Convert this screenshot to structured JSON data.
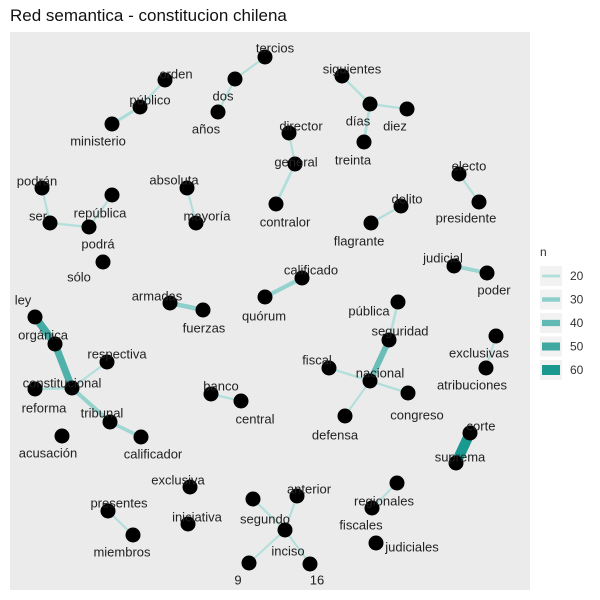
{
  "chart_data": {
    "type": "network",
    "title": "Red semantica - constitucion chilena",
    "legend": {
      "title": "n",
      "placement": "right",
      "values": [
        20,
        30,
        40,
        50,
        60
      ],
      "range": [
        15,
        65
      ],
      "colors": [
        "#b2dfdb",
        "#8ecfcb",
        "#62b8b3",
        "#3ea8a1",
        "#1a9991"
      ]
    },
    "nodes": [
      {
        "id": "tercios",
        "label": "tercios"
      },
      {
        "id": "dos",
        "label": "dos"
      },
      {
        "id": "anos",
        "label": "años"
      },
      {
        "id": "orden",
        "label": "orden"
      },
      {
        "id": "publico",
        "label": "público"
      },
      {
        "id": "ministerio",
        "label": "ministerio"
      },
      {
        "id": "siguientes",
        "label": "siguientes"
      },
      {
        "id": "dias",
        "label": "días"
      },
      {
        "id": "diez",
        "label": "diez"
      },
      {
        "id": "treinta",
        "label": "treinta"
      },
      {
        "id": "director",
        "label": "director"
      },
      {
        "id": "general",
        "label": "general"
      },
      {
        "id": "contralor",
        "label": "contralor"
      },
      {
        "id": "podran",
        "label": "podrán"
      },
      {
        "id": "ser",
        "label": "ser"
      },
      {
        "id": "republica",
        "label": "república"
      },
      {
        "id": "podra",
        "label": "podrá"
      },
      {
        "id": "solo",
        "label": "sólo"
      },
      {
        "id": "absoluta",
        "label": "absoluta"
      },
      {
        "id": "mayoria",
        "label": "mayoría"
      },
      {
        "id": "electo",
        "label": "electo"
      },
      {
        "id": "presidente",
        "label": "presidente"
      },
      {
        "id": "delito",
        "label": "delito"
      },
      {
        "id": "flagrante",
        "label": "flagrante"
      },
      {
        "id": "judicial",
        "label": "judicial"
      },
      {
        "id": "poder",
        "label": "poder"
      },
      {
        "id": "calificado",
        "label": "calificado"
      },
      {
        "id": "quorum",
        "label": "quórum"
      },
      {
        "id": "armadas",
        "label": "armadas"
      },
      {
        "id": "fuerzas",
        "label": "fuerzas"
      },
      {
        "id": "publica",
        "label": "pública"
      },
      {
        "id": "seguridad",
        "label": "seguridad"
      },
      {
        "id": "exclusivas",
        "label": "exclusivas"
      },
      {
        "id": "atribuciones",
        "label": "atribuciones"
      },
      {
        "id": "ley",
        "label": "ley"
      },
      {
        "id": "organica",
        "label": "orgánica"
      },
      {
        "id": "respectiva",
        "label": "respectiva"
      },
      {
        "id": "constitucional",
        "label": "constitucional"
      },
      {
        "id": "reforma",
        "label": "reforma"
      },
      {
        "id": "tribunal",
        "label": "tribunal"
      },
      {
        "id": "calificador",
        "label": "calificador"
      },
      {
        "id": "acusacion",
        "label": "acusación"
      },
      {
        "id": "banco",
        "label": "banco"
      },
      {
        "id": "central",
        "label": "central"
      },
      {
        "id": "fiscal",
        "label": "fiscal"
      },
      {
        "id": "nacional",
        "label": "nacional"
      },
      {
        "id": "defensa",
        "label": "defensa"
      },
      {
        "id": "congreso",
        "label": "congreso"
      },
      {
        "id": "corte",
        "label": "corte"
      },
      {
        "id": "suprema",
        "label": "suprema"
      },
      {
        "id": "exclusiva",
        "label": "exclusiva"
      },
      {
        "id": "iniciativa",
        "label": "iniciativa"
      },
      {
        "id": "presentes",
        "label": "presentes"
      },
      {
        "id": "miembros",
        "label": "miembros"
      },
      {
        "id": "anterior",
        "label": "anterior"
      },
      {
        "id": "segundo",
        "label": "segundo"
      },
      {
        "id": "inciso",
        "label": "inciso"
      },
      {
        "id": "n9",
        "label": "9"
      },
      {
        "id": "n16",
        "label": "16"
      },
      {
        "id": "regionales",
        "label": "regionales"
      },
      {
        "id": "fiscales",
        "label": "fiscales"
      },
      {
        "id": "judiciales",
        "label": "judiciales"
      }
    ],
    "edges": [
      {
        "source": "dos",
        "target": "tercios",
        "n": 17
      },
      {
        "source": "dos",
        "target": "anos",
        "n": 17
      },
      {
        "source": "orden",
        "target": "publico",
        "n": 17
      },
      {
        "source": "ministerio",
        "target": "publico",
        "n": 22
      },
      {
        "source": "siguientes",
        "target": "dias",
        "n": 18
      },
      {
        "source": "dias",
        "target": "diez",
        "n": 18
      },
      {
        "source": "treinta",
        "target": "dias",
        "n": 20
      },
      {
        "source": "director",
        "target": "general",
        "n": 17
      },
      {
        "source": "contralor",
        "target": "general",
        "n": 20
      },
      {
        "source": "podran",
        "target": "ser",
        "n": 17
      },
      {
        "source": "ser",
        "target": "podra",
        "n": 17
      },
      {
        "source": "republica",
        "target": "podra",
        "n": 16
      },
      {
        "source": "absoluta",
        "target": "mayoria",
        "n": 17
      },
      {
        "source": "presidente",
        "target": "electo",
        "n": 17
      },
      {
        "source": "delito",
        "target": "flagrante",
        "n": 18
      },
      {
        "source": "poder",
        "target": "judicial",
        "n": 26
      },
      {
        "source": "quorum",
        "target": "calificado",
        "n": 28
      },
      {
        "source": "fuerzas",
        "target": "armadas",
        "n": 30
      },
      {
        "source": "seguridad",
        "target": "publica",
        "n": 20
      },
      {
        "source": "seguridad",
        "target": "nacional",
        "n": 38
      },
      {
        "source": "exclusivas",
        "target": "atribuciones",
        "n": 16
      },
      {
        "source": "ley",
        "target": "organica",
        "n": 48
      },
      {
        "source": "organica",
        "target": "constitucional",
        "n": 45
      },
      {
        "source": "respectiva",
        "target": "constitucional",
        "n": 17
      },
      {
        "source": "reforma",
        "target": "constitucional",
        "n": 20
      },
      {
        "source": "tribunal",
        "target": "constitucional",
        "n": 28
      },
      {
        "source": "tribunal",
        "target": "calificador",
        "n": 25
      },
      {
        "source": "banco",
        "target": "central",
        "n": 18
      },
      {
        "source": "fiscal",
        "target": "nacional",
        "n": 18
      },
      {
        "source": "defensa",
        "target": "nacional",
        "n": 16
      },
      {
        "source": "congreso",
        "target": "nacional",
        "n": 18
      },
      {
        "source": "corte",
        "target": "suprema",
        "n": 62
      },
      {
        "source": "presentes",
        "target": "miembros",
        "n": 17
      },
      {
        "source": "anterior",
        "target": "inciso",
        "n": 17
      },
      {
        "source": "segundo",
        "target": "inciso",
        "n": 17
      },
      {
        "source": "inciso",
        "target": "n9",
        "n": 16
      },
      {
        "source": "inciso",
        "target": "n16",
        "n": 16
      },
      {
        "source": "regionales",
        "target": "fiscales",
        "n": 16
      }
    ]
  }
}
